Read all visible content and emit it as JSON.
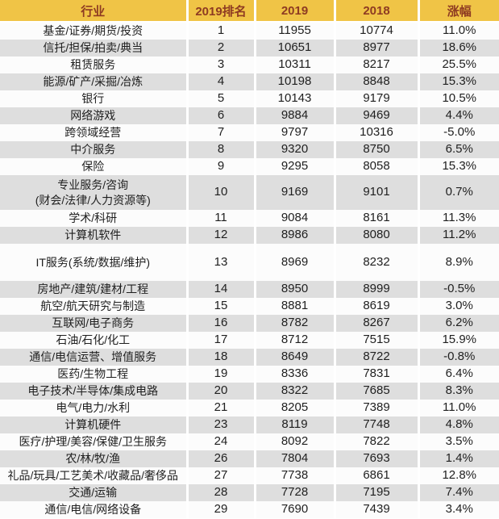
{
  "style": {
    "header_bg": "#F0C446",
    "header_text": "#8E3B22",
    "stripe_gray": "#DEDEDE",
    "row_white": "#FCFCFC",
    "body_text": "#1F1F1F"
  },
  "chart_data": {
    "type": "table",
    "columns": [
      "行业",
      "2019排名",
      "2019",
      "2018",
      "涨幅"
    ],
    "rows": [
      [
        "基金/证券/期货/投资",
        "1",
        "11955",
        "10774",
        "11.0%"
      ],
      [
        "信托/担保/拍卖/典当",
        "2",
        "10651",
        "8977",
        "18.6%"
      ],
      [
        "租赁服务",
        "3",
        "10311",
        "8217",
        "25.5%"
      ],
      [
        "能源/矿产/采掘/冶炼",
        "4",
        "10198",
        "8848",
        "15.3%"
      ],
      [
        "银行",
        "5",
        "10143",
        "9179",
        "10.5%"
      ],
      [
        "网络游戏",
        "6",
        "9884",
        "9469",
        "4.4%"
      ],
      [
        "跨领域经营",
        "7",
        "9797",
        "10316",
        "-5.0%"
      ],
      [
        "中介服务",
        "8",
        "9320",
        "8750",
        "6.5%"
      ],
      [
        "保险",
        "9",
        "9295",
        "8058",
        "15.3%"
      ],
      [
        "专业服务/咨询\n(财会/法律/人力资源等)",
        "10",
        "9169",
        "9101",
        "0.7%"
      ],
      [
        "学术/科研",
        "11",
        "9084",
        "8161",
        "11.3%"
      ],
      [
        "计算机软件",
        "12",
        "8986",
        "8080",
        "11.2%"
      ],
      [
        "IT服务(系统/数据/维护)",
        "13",
        "8969",
        "8232",
        "8.9%"
      ],
      [
        "房地产/建筑/建材/工程",
        "14",
        "8950",
        "8999",
        "-0.5%"
      ],
      [
        "航空/航天研究与制造",
        "15",
        "8881",
        "8619",
        "3.0%"
      ],
      [
        "互联网/电子商务",
        "16",
        "8782",
        "8267",
        "6.2%"
      ],
      [
        "石油/石化/化工",
        "17",
        "8712",
        "7515",
        "15.9%"
      ],
      [
        "通信/电信运营、增值服务",
        "18",
        "8649",
        "8722",
        "-0.8%"
      ],
      [
        "医药/生物工程",
        "19",
        "8336",
        "7831",
        "6.4%"
      ],
      [
        "电子技术/半导体/集成电路",
        "20",
        "8322",
        "7685",
        "8.3%"
      ],
      [
        "电气/电力/水利",
        "21",
        "8205",
        "7389",
        "11.0%"
      ],
      [
        "计算机硬件",
        "23",
        "8119",
        "7748",
        "4.8%"
      ],
      [
        "医疗/护理/美容/保健/卫生服务",
        "24",
        "8092",
        "7822",
        "3.5%"
      ],
      [
        "农/林/牧/渔",
        "26",
        "7804",
        "7693",
        "1.4%"
      ],
      [
        "礼品/玩具/工艺美术/收藏品/奢侈品",
        "27",
        "7738",
        "6861",
        "12.8%"
      ],
      [
        "交通/运输",
        "28",
        "7728",
        "7195",
        "7.4%"
      ],
      [
        "通信/电信/网络设备",
        "29",
        "7690",
        "7439",
        "3.4%"
      ]
    ]
  }
}
